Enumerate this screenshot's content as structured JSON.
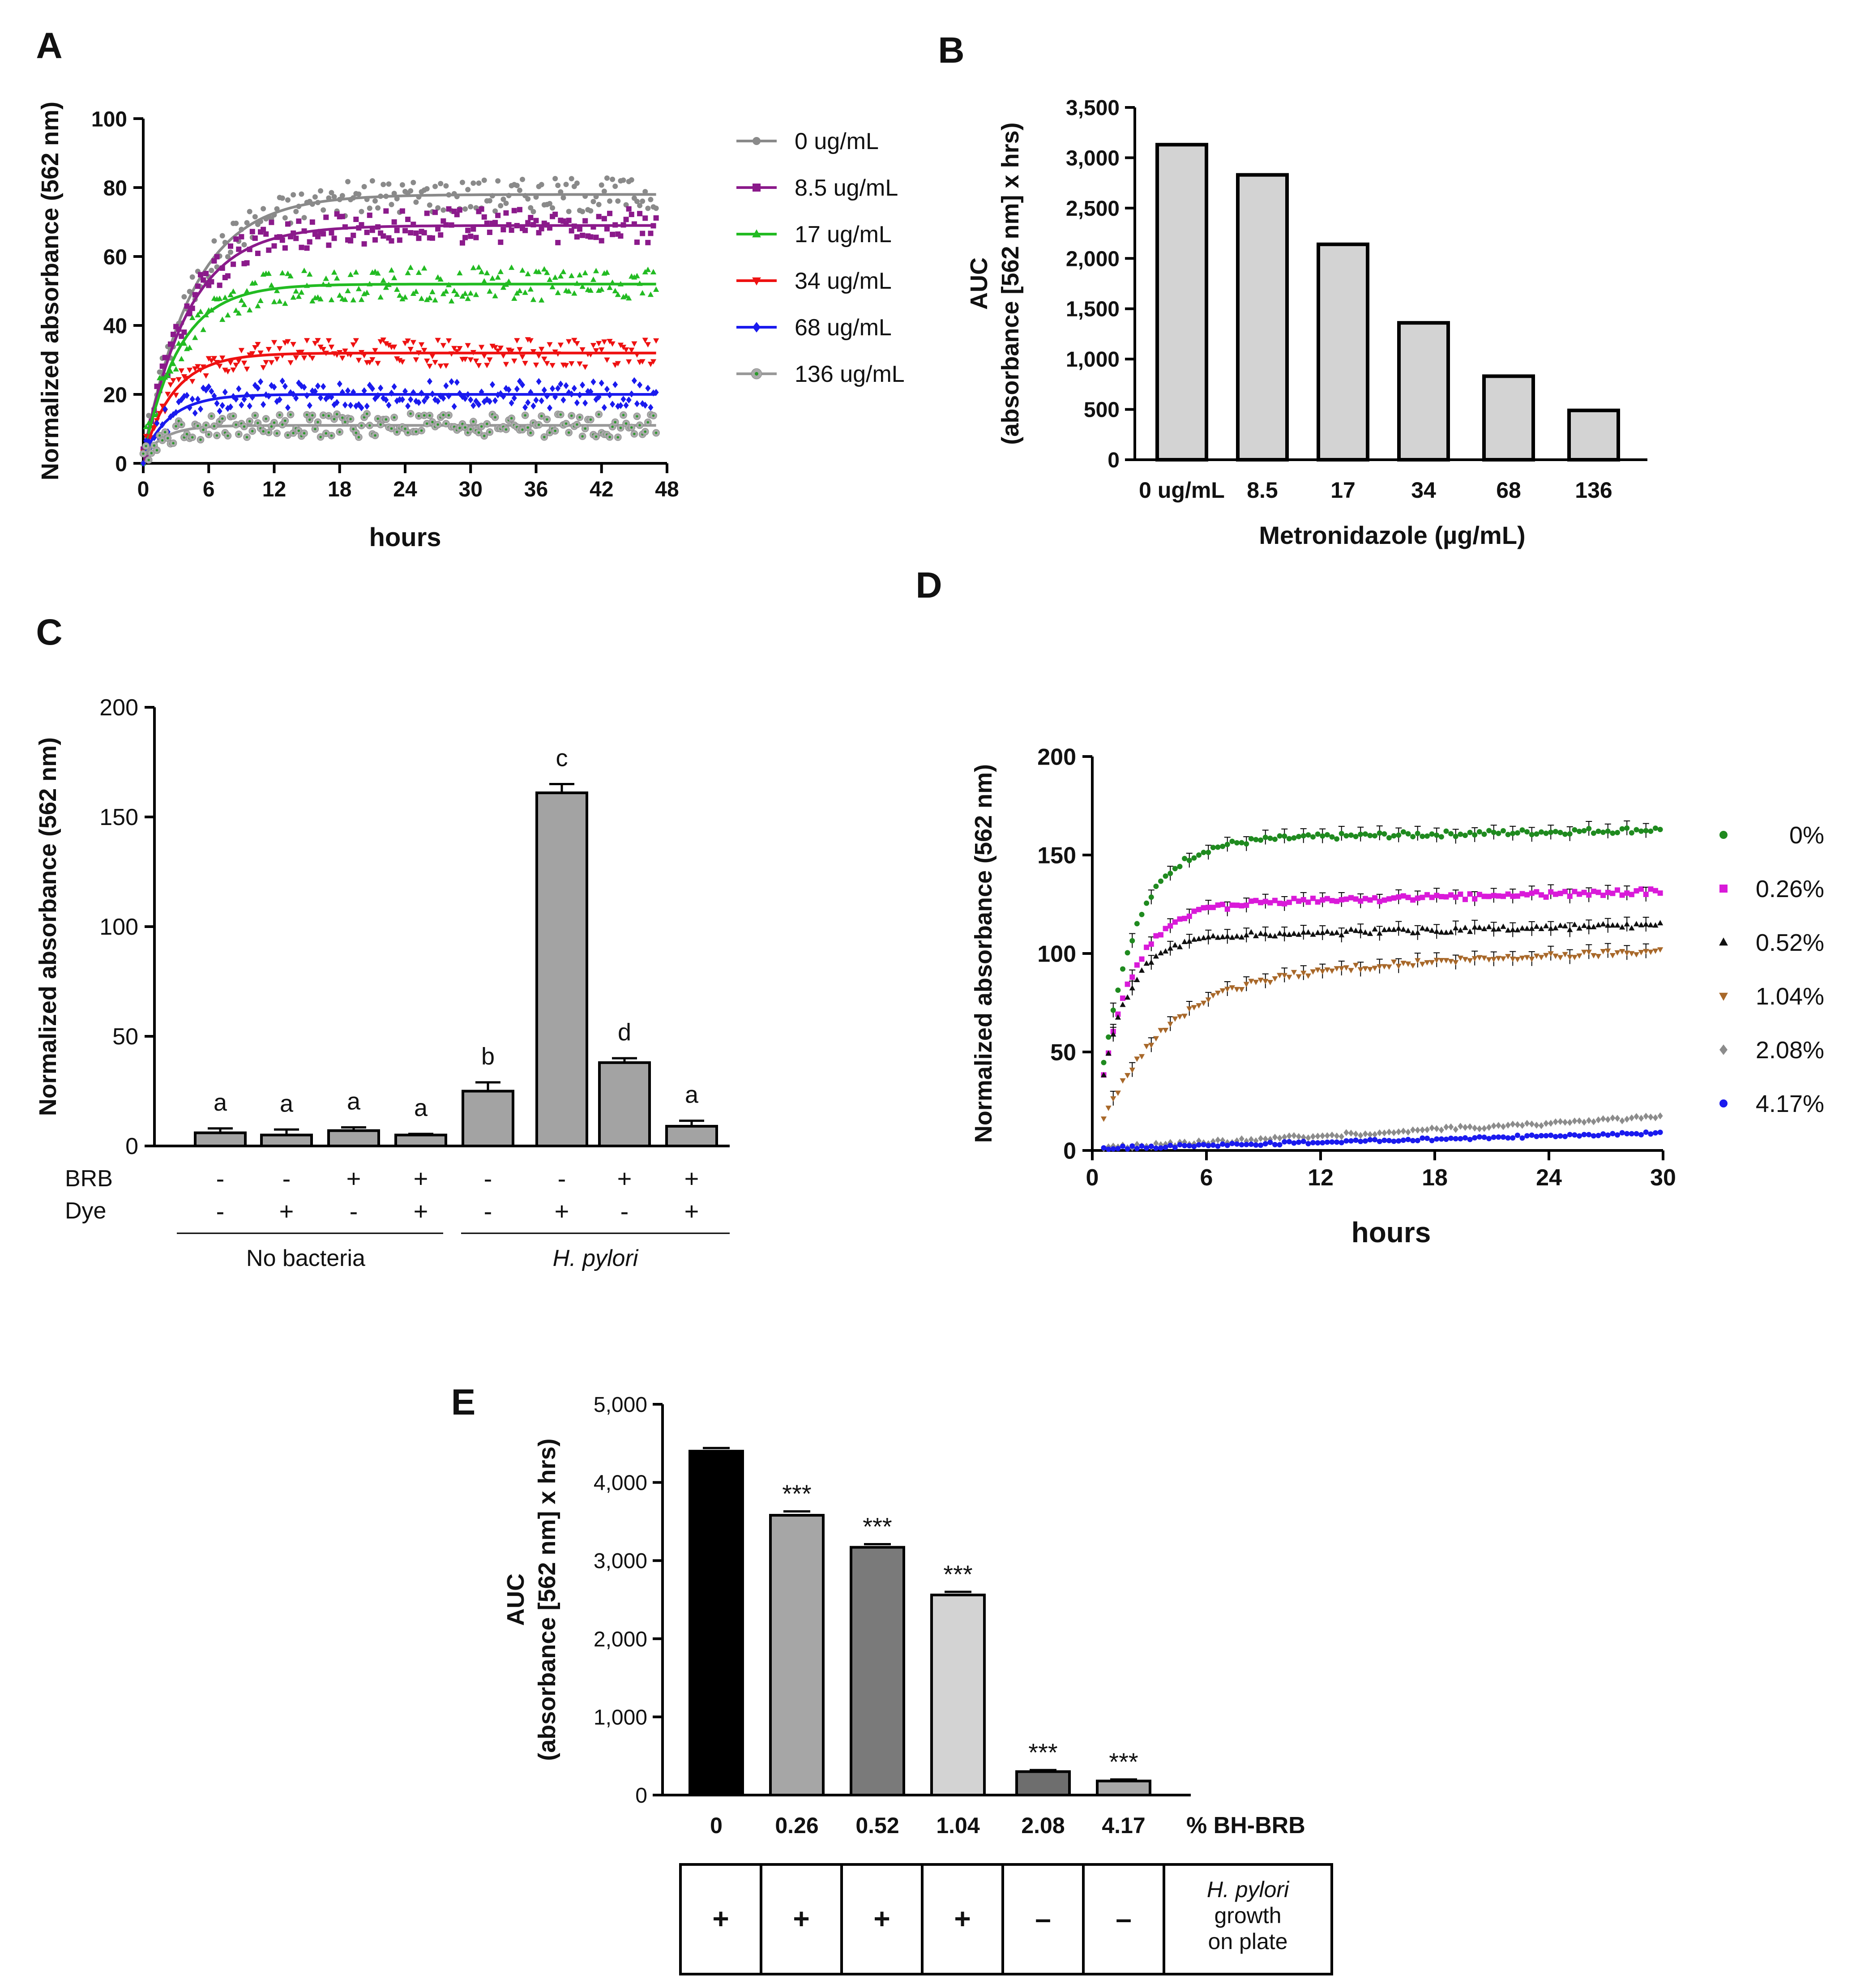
{
  "chart_data": [
    {
      "id": "A",
      "type": "scatter",
      "panel_label": "A",
      "xlabel": "hours",
      "ylabel": "Normalized absorbance (562 nm)",
      "xlim": [
        0,
        48
      ],
      "ylim": [
        0,
        100
      ],
      "xticks": [
        0,
        6,
        12,
        18,
        24,
        30,
        36,
        42,
        48
      ],
      "yticks": [
        0,
        20,
        40,
        60,
        80,
        100
      ],
      "legend_position": "right",
      "series": [
        {
          "name": "0 ug/mL",
          "color": "#8a8a8a",
          "marker": "circle",
          "plateau": 78,
          "k": 0.22
        },
        {
          "name": "8.5 ug/mL",
          "color": "#8b1a8b",
          "marker": "square",
          "plateau": 69,
          "k": 0.24
        },
        {
          "name": "17 ug/mL",
          "color": "#22bb22",
          "marker": "triangle-up",
          "plateau": 52,
          "k": 0.3
        },
        {
          "name": "34 ug/mL",
          "color": "#ee1111",
          "marker": "triangle-down",
          "plateau": 32,
          "k": 0.35
        },
        {
          "name": "68 ug/mL",
          "color": "#1a1aee",
          "marker": "diamond",
          "plateau": 20,
          "k": 0.4
        },
        {
          "name": "136 ug/mL",
          "color": "#999999",
          "marker": "circle-dot",
          "plateau": 11,
          "k": 0.5
        }
      ]
    },
    {
      "id": "B",
      "type": "bar",
      "panel_label": "B",
      "categories": [
        "0 ug/mL",
        "8.5",
        "17",
        "34",
        "68",
        "136"
      ],
      "values": [
        3130,
        2830,
        2140,
        1360,
        830,
        490
      ],
      "xlabel": "Metronidazole (µg/mL)",
      "ylabel_lines": [
        "AUC",
        "(absorbance [562 nm] x hrs)"
      ],
      "ylim": [
        0,
        3500
      ],
      "yticks": [
        0,
        500,
        1000,
        1500,
        2000,
        2500,
        3000,
        3500
      ],
      "ytick_labels": [
        "0",
        "500",
        "1,000",
        "1,500",
        "2,000",
        "2,500",
        "3,000",
        "3,500"
      ],
      "bar_color": "#d3d3d3"
    },
    {
      "id": "C",
      "type": "bar",
      "panel_label": "C",
      "values": [
        6,
        5,
        7,
        5,
        25,
        161,
        38,
        9
      ],
      "errors": [
        2,
        2.5,
        1.5,
        0.5,
        4,
        4,
        2,
        2.5
      ],
      "letters": [
        "a",
        "a",
        "a",
        "a",
        "b",
        "c",
        "d",
        "a"
      ],
      "brb": [
        "-",
        "-",
        "+",
        "+",
        "-",
        "-",
        "+",
        "+"
      ],
      "dye": [
        "-",
        "+",
        "-",
        "+",
        "-",
        "+",
        "-",
        "+"
      ],
      "row_labels": [
        "BRB",
        "Dye"
      ],
      "groups": [
        "No bacteria",
        "H. pylori"
      ],
      "ylabel": "Normalized absorbance (562 nm)",
      "ylim": [
        0,
        200
      ],
      "yticks": [
        0,
        50,
        100,
        150,
        200
      ],
      "bar_color": "#a3a3a3"
    },
    {
      "id": "D",
      "type": "scatter",
      "panel_label": "D",
      "xlabel": "hours",
      "ylabel": "Normalized absorbance (562 nm)",
      "xlim": [
        0,
        30
      ],
      "ylim": [
        0,
        200
      ],
      "xticks": [
        0,
        6,
        12,
        18,
        24,
        30
      ],
      "yticks": [
        0,
        50,
        100,
        150,
        200
      ],
      "legend_position": "right",
      "series": [
        {
          "name": "0%",
          "color": "#1f8a1f",
          "marker": "circle",
          "plateau": 157,
          "k": 0.55,
          "drift": 0.2
        },
        {
          "name": "0.26%",
          "color": "#d91ad9",
          "marker": "square",
          "plateau": 124,
          "k": 0.6,
          "drift": 0.25
        },
        {
          "name": "0.52%",
          "color": "#111111",
          "marker": "triangle-up",
          "plateau": 108,
          "k": 0.7,
          "drift": 0.2
        },
        {
          "name": "1.04%",
          "color": "#a8682a",
          "marker": "triangle-down",
          "plateau": 88,
          "k": 0.3,
          "drift": 0.45
        },
        {
          "name": "2.08%",
          "color": "#8c8c8c",
          "marker": "diamond",
          "plateau": 17,
          "k": 0.1,
          "drift": 0
        },
        {
          "name": "4.17%",
          "color": "#1a1aee",
          "marker": "circle",
          "plateau": 9,
          "k": 0.2,
          "drift": 0
        }
      ]
    },
    {
      "id": "E",
      "type": "bar",
      "panel_label": "E",
      "categories": [
        "0",
        "0.26",
        "0.52",
        "1.04",
        "2.08",
        "4.17"
      ],
      "values": [
        4400,
        3580,
        3170,
        2560,
        300,
        180
      ],
      "errors": [
        40,
        50,
        40,
        40,
        20,
        20
      ],
      "significance": [
        "",
        "***",
        "***",
        "***",
        "***",
        "***"
      ],
      "bar_colors": [
        "#000000",
        "#a6a6a6",
        "#7a7a7a",
        "#d3d3d3",
        "#6e6e6e",
        "#a6a6a6"
      ],
      "x_axis_title": "% BH-BRB",
      "ylabel_lines": [
        "AUC",
        "(absorbance [562 nm] x hrs)"
      ],
      "ylim": [
        0,
        5000
      ],
      "yticks": [
        0,
        1000,
        2000,
        3000,
        4000,
        5000
      ],
      "ytick_labels": [
        "0",
        "1,000",
        "2,000",
        "3,000",
        "4,000",
        "5,000"
      ],
      "table_values": [
        "+",
        "+",
        "+",
        "+",
        "–",
        "–"
      ],
      "table_row_label_lines": [
        "H. pylori",
        "growth",
        "on plate"
      ]
    }
  ]
}
